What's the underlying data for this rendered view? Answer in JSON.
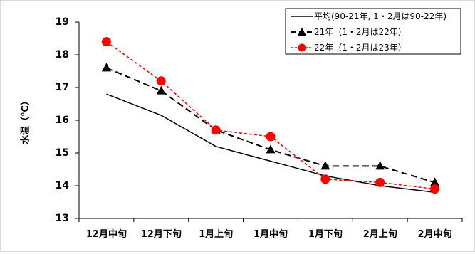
{
  "chart_data": {
    "type": "line",
    "ylabel": "水温（℃）",
    "ylim": [
      13,
      19
    ],
    "yticks": [
      "13",
      "14",
      "15",
      "16",
      "17",
      "18",
      "19"
    ],
    "categories": [
      "12月中旬",
      "12月下旬",
      "1月上旬",
      "1月中旬",
      "1月下旬",
      "2月上旬",
      "2月中旬"
    ],
    "grid": false,
    "legend_position": "top-right",
    "series": [
      {
        "name": "平均(90-21年, 1・2月は90-22年)",
        "values": [
          16.8,
          16.15,
          15.2,
          14.75,
          14.3,
          14.0,
          13.8
        ],
        "color": "#000000",
        "style": "solid",
        "marker": "none"
      },
      {
        "name": "21年（1・2月は22年）",
        "values": [
          17.6,
          16.9,
          15.7,
          15.1,
          14.6,
          14.6,
          14.1
        ],
        "color": "#000000",
        "style": "dashed",
        "marker": "triangle"
      },
      {
        "name": "22年（1・2月は23年）",
        "values": [
          18.4,
          17.2,
          15.7,
          15.5,
          14.2,
          14.1,
          13.9
        ],
        "color": "#ff0000",
        "style": "dotted",
        "marker": "circle"
      }
    ]
  }
}
